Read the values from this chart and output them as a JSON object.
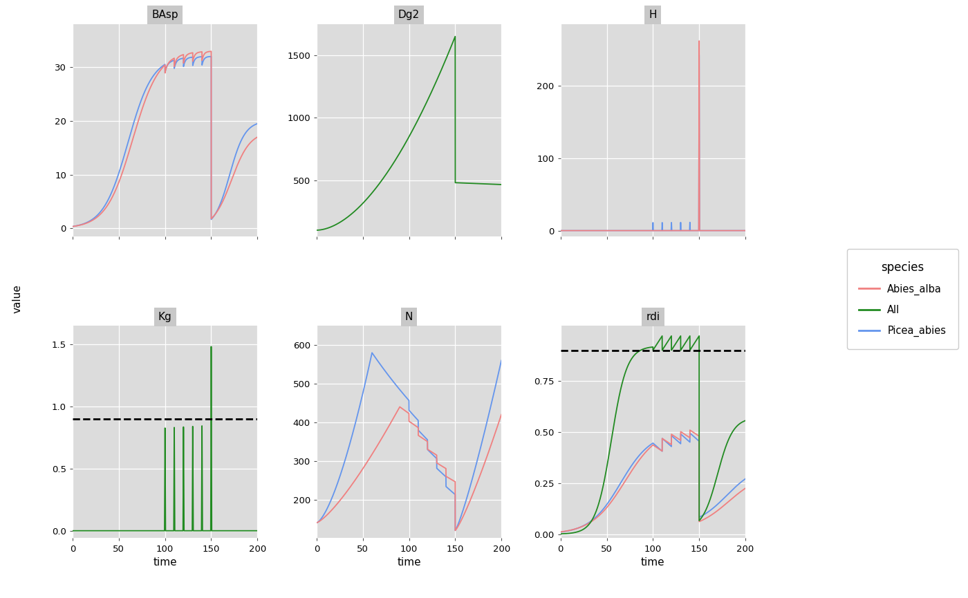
{
  "subplot_titles": [
    "BAsp",
    "Dg2",
    "H",
    "Kg",
    "N",
    "rdi"
  ],
  "species_colors": {
    "Abies_alba": "#F08080",
    "All": "#228B22",
    "Picea_abies": "#6495ED"
  },
  "legend_title": "species",
  "xlabel": "time",
  "ylabel": "value",
  "dashed_target": 0.9,
  "plot_bg_color": "#DCDCDC",
  "facet_header_color": "#C8C8C8"
}
